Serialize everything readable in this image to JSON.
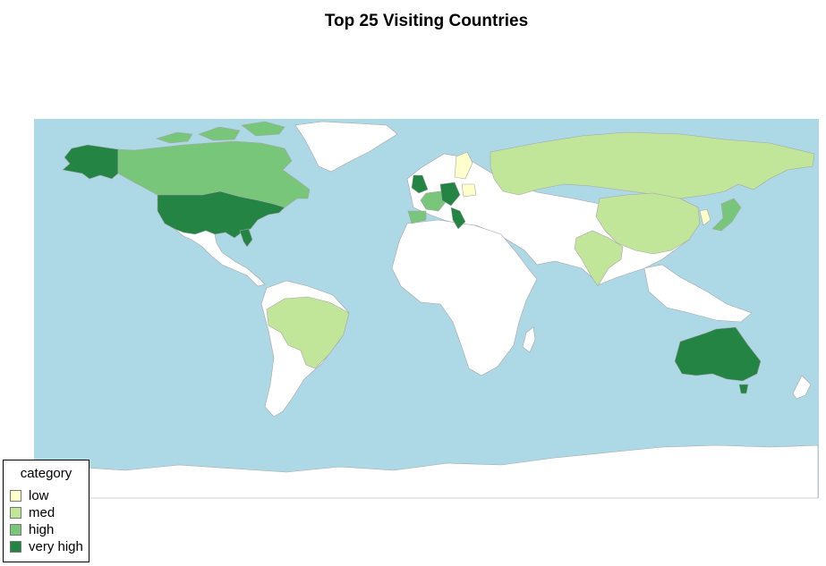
{
  "title": "Top 25 Visiting Countries",
  "colors": {
    "ocean": "#add8e6",
    "land": "#ffffff",
    "border": "#a6a6a6",
    "low": "#ffffcc",
    "med": "#c2e699",
    "high": "#78c679",
    "very_high": "#238443"
  },
  "legend": {
    "title": "category",
    "items": [
      {
        "key": "low",
        "label": "low"
      },
      {
        "key": "med",
        "label": "med"
      },
      {
        "key": "high",
        "label": "high"
      },
      {
        "key": "very_high",
        "label": "very high"
      }
    ]
  },
  "regions": [
    {
      "name": "alaska",
      "category": "very_high"
    },
    {
      "name": "canada",
      "category": "high"
    },
    {
      "name": "united-states",
      "category": "very_high"
    },
    {
      "name": "mexico",
      "category": "none"
    },
    {
      "name": "greenland",
      "category": "none"
    },
    {
      "name": "south-america",
      "category": "none"
    },
    {
      "name": "brazil",
      "category": "med"
    },
    {
      "name": "africa",
      "category": "none"
    },
    {
      "name": "madagascar",
      "category": "none"
    },
    {
      "name": "russia",
      "category": "med"
    },
    {
      "name": "china",
      "category": "med"
    },
    {
      "name": "india",
      "category": "med"
    },
    {
      "name": "australia",
      "category": "very_high"
    },
    {
      "name": "japan",
      "category": "high"
    },
    {
      "name": "south-korea",
      "category": "low"
    },
    {
      "name": "sweden",
      "category": "low"
    },
    {
      "name": "united-kingdom",
      "category": "very_high"
    },
    {
      "name": "france",
      "category": "high"
    },
    {
      "name": "spain",
      "category": "high"
    },
    {
      "name": "germany",
      "category": "very_high"
    },
    {
      "name": "italy",
      "category": "very_high"
    },
    {
      "name": "poland",
      "category": "low"
    },
    {
      "name": "antarctica",
      "category": "none"
    }
  ]
}
